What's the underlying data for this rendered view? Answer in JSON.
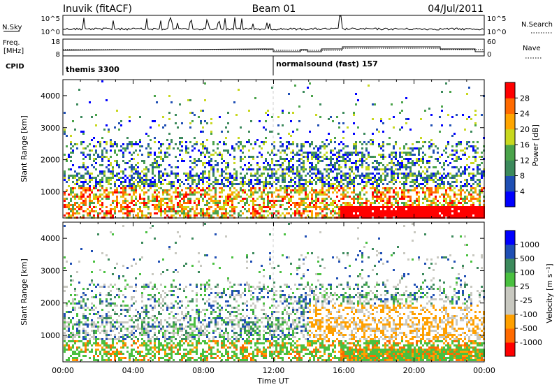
{
  "header": {
    "site": "Inuvik (fitACF)",
    "beam": "Beam 01",
    "date": "04/Jul/2011"
  },
  "top_panels": {
    "nsky_label": "N.Sky",
    "nsky_ticks": [
      "10^5",
      "10^0"
    ],
    "nsearch_label": "N.Search",
    "nsearch_ticks": [
      "10^5",
      "10^0"
    ],
    "freq_label": "Freq.",
    "freq_unit": "[MHz]",
    "freq_ticks": [
      "18",
      "8"
    ],
    "nave_label": "Nave",
    "nave_ticks": [
      "60",
      "0"
    ],
    "cpid_label": "CPID",
    "cpid_segments": [
      {
        "label": "themis 3300",
        "start_hour": 0
      },
      {
        "label": "normalsound (fast) 157",
        "start_hour": 12
      }
    ]
  },
  "colors": {
    "power_scale": [
      "#0000ff",
      "#1f4fb4",
      "#3c8a5c",
      "#4aa34a",
      "#c8d81e",
      "#ffa500",
      "#ff6a00",
      "#ff0000"
    ],
    "velocity_scale": [
      "#ff0000",
      "#ff6a00",
      "#ffa000",
      "#c8c8c0",
      "#c8c8c0",
      "#4ac040",
      "#3c8a5c",
      "#1f4fb4",
      "#0000ff"
    ]
  },
  "chart_data": [
    {
      "type": "heatmap",
      "name": "power-panel",
      "xlabel": "",
      "ylabel": "Slant Range [km]",
      "xlim": [
        0,
        24
      ],
      "ylim": [
        180,
        4500
      ],
      "yticks": [
        "1000",
        "2000",
        "3000",
        "4000"
      ],
      "colorbar_label": "Power [dB]",
      "colorbar_ticks": [
        "4",
        "8",
        "12",
        "16",
        "20",
        "24",
        "28"
      ]
    },
    {
      "type": "heatmap",
      "name": "velocity-panel",
      "xlabel": "Time UT",
      "ylabel": "Slant Range [km]",
      "xlim": [
        0,
        24
      ],
      "ylim": [
        180,
        4500
      ],
      "xticks": [
        "00:00",
        "04:00",
        "08:00",
        "12:00",
        "16:00",
        "20:00",
        "00:00"
      ],
      "yticks": [
        "1000",
        "2000",
        "3000",
        "4000"
      ],
      "colorbar_label": "Velocity [m s⁻¹]",
      "colorbar_ticks": [
        "1000",
        "500",
        "100",
        "25",
        "-25",
        "-100",
        "-500",
        "-1000"
      ]
    }
  ]
}
